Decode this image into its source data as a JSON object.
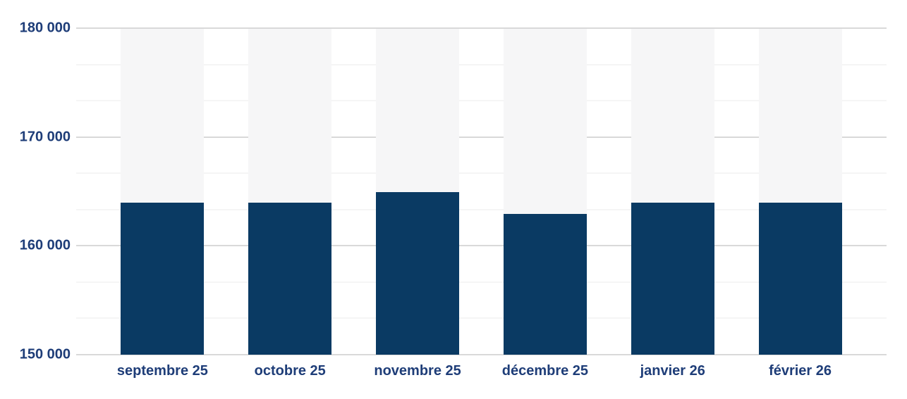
{
  "chart_data": {
    "type": "bar",
    "title": "",
    "xlabel": "",
    "ylabel": "",
    "categories": [
      "septembre 25",
      "octobre 25",
      "novembre 25",
      "décembre 25",
      "janvier 26",
      "février 26"
    ],
    "values": [
      164000,
      164000,
      165000,
      163000,
      164000,
      164000
    ],
    "ylim": [
      150000,
      180000
    ],
    "y_major_step": 10000,
    "y_minor_divisions": 3,
    "y_tick_labels": [
      "180 000",
      "170 000",
      "160 000",
      "150 000"
    ],
    "grid": "horizontal",
    "legend": "none",
    "bars_have_background_fill_to_ymax": true
  },
  "colors": {
    "page_background": "#ffffff",
    "bar": "#0a3a63",
    "bar_background": "#f6f6f7",
    "gridline_major": "#d9d9d9",
    "gridline_minor": "#ebebeb",
    "axis_label": "#1e3d78"
  }
}
